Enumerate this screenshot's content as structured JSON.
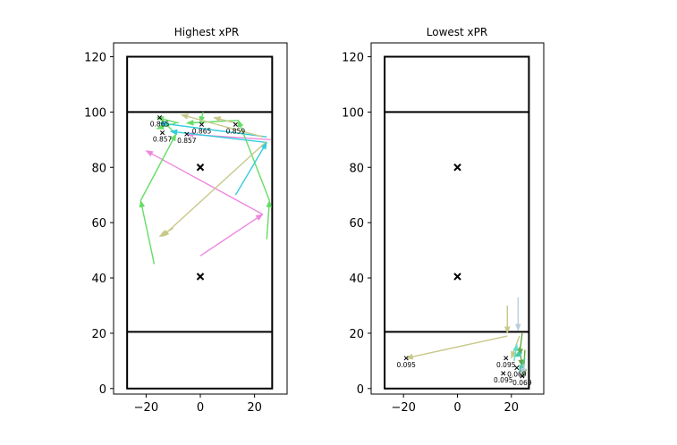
{
  "chart_data": [
    {
      "type": "scatter",
      "title": "Highest xPR",
      "xlim": [
        -32,
        32
      ],
      "ylim": [
        -2,
        125
      ],
      "xticks": [
        -20,
        0,
        20
      ],
      "yticks": [
        0,
        20,
        40,
        60,
        80,
        100,
        120
      ],
      "court": {
        "x_range": [
          -27,
          26.5
        ],
        "y_range": [
          0,
          120
        ],
        "lines_y": [
          20.5,
          100
        ],
        "spots": [
          [
            0,
            80
          ],
          [
            0,
            40.5
          ]
        ]
      },
      "shots": [
        {
          "x": -15,
          "y": 98,
          "label": "0.865"
        },
        {
          "x": 0.5,
          "y": 95.5,
          "label": "0.865"
        },
        {
          "x": 13,
          "y": 95.5,
          "label": "0.859"
        },
        {
          "x": -14,
          "y": 92.5,
          "label": "0.857"
        },
        {
          "x": -5,
          "y": 92,
          "label": "0.857"
        }
      ],
      "passes": [
        {
          "from": [
            0,
            48
          ],
          "to": [
            23,
            63
          ],
          "color": "#ee88dd"
        },
        {
          "from": [
            23,
            63
          ],
          "to": [
            -20,
            86
          ],
          "color": "#ee88dd"
        },
        {
          "from": [
            26,
            90
          ],
          "to": [
            -5,
            92
          ],
          "color": "#ee88dd"
        },
        {
          "from": [
            -17,
            45
          ],
          "to": [
            -22,
            68
          ],
          "color": "#66dd66"
        },
        {
          "from": [
            -22,
            68
          ],
          "to": [
            -9,
            92
          ],
          "color": "#66dd66"
        },
        {
          "from": [
            -9,
            92
          ],
          "to": [
            -14,
            97
          ],
          "color": "#66dd66"
        },
        {
          "from": [
            24.5,
            54
          ],
          "to": [
            25.5,
            68
          ],
          "color": "#66dd66"
        },
        {
          "from": [
            25.5,
            68
          ],
          "to": [
            14,
            97
          ],
          "color": "#66dd66"
        },
        {
          "from": [
            14,
            97
          ],
          "to": [
            -5,
            96
          ],
          "color": "#66dd66"
        },
        {
          "from": [
            1,
            100
          ],
          "to": [
            0,
            96
          ],
          "color": "#66dd66"
        },
        {
          "from": [
            -8,
            96
          ],
          "to": [
            -16,
            98
          ],
          "color": "#66dd66"
        },
        {
          "from": [
            -9,
            96
          ],
          "to": [
            -16,
            94
          ],
          "color": "#66dd66"
        },
        {
          "from": [
            13,
            70
          ],
          "to": [
            24.5,
            89
          ],
          "color": "#33ccdd"
        },
        {
          "from": [
            24.5,
            89
          ],
          "to": [
            -11,
            93
          ],
          "color": "#33ccdd"
        },
        {
          "from": [
            24.5,
            91
          ],
          "to": [
            -15,
            96
          ],
          "color": "#33ccdd"
        },
        {
          "from": [
            24,
            89
          ],
          "to": [
            -14,
            55
          ],
          "color": "#c8c88a"
        },
        {
          "from": [
            -10,
            58
          ],
          "to": [
            -15,
            55
          ],
          "color": "#c8c88a"
        },
        {
          "from": [
            23,
            91
          ],
          "to": [
            -7,
            99
          ],
          "color": "#c8c88a"
        },
        {
          "from": [
            13,
            96
          ],
          "to": [
            5,
            98
          ],
          "color": "#c8c88a"
        }
      ]
    },
    {
      "type": "scatter",
      "title": "Lowest xPR",
      "xlim": [
        -32,
        32
      ],
      "ylim": [
        -2,
        125
      ],
      "xticks": [
        -20,
        0,
        20
      ],
      "yticks": [
        0,
        20,
        40,
        60,
        80,
        100,
        120
      ],
      "court": {
        "x_range": [
          -27,
          26.5
        ],
        "y_range": [
          0,
          120
        ],
        "lines_y": [
          20.5,
          100
        ],
        "spots": [
          [
            0,
            80
          ],
          [
            0,
            40.5
          ]
        ]
      },
      "shots": [
        {
          "x": -19,
          "y": 11,
          "label": "0.095"
        },
        {
          "x": 18,
          "y": 11,
          "label": "0.095"
        },
        {
          "x": 17,
          "y": 5.5,
          "label": "0.095"
        },
        {
          "x": 22,
          "y": 7.5,
          "label": "0.069"
        },
        {
          "x": 24,
          "y": 4.5,
          "label": "0.069"
        }
      ],
      "passes": [
        {
          "from": [
            18.5,
            30
          ],
          "to": [
            18.5,
            20
          ],
          "color": "#c8c88a"
        },
        {
          "from": [
            18.5,
            19
          ],
          "to": [
            -19,
            11
          ],
          "color": "#c8c88a"
        },
        {
          "from": [
            22.5,
            33
          ],
          "to": [
            22.5,
            21
          ],
          "color": "#bbccdd"
        },
        {
          "from": [
            23,
            19
          ],
          "to": [
            20,
            11
          ],
          "color": "#c8c88a"
        },
        {
          "from": [
            24,
            20
          ],
          "to": [
            23,
            12
          ],
          "color": "#66aa44"
        },
        {
          "from": [
            23,
            15
          ],
          "to": [
            24,
            8
          ],
          "color": "#66aa44"
        },
        {
          "from": [
            25,
            14
          ],
          "to": [
            24.5,
            4.5
          ],
          "color": "#66aa44"
        },
        {
          "from": [
            24,
            13
          ],
          "to": [
            21,
            11.5
          ],
          "color": "#44ccaa"
        },
        {
          "from": [
            25,
            11
          ],
          "to": [
            23,
            6
          ],
          "color": "#44ccaa"
        },
        {
          "from": [
            21,
            10
          ],
          "to": [
            22,
            16
          ],
          "color": "#66ddcc"
        },
        {
          "from": [
            25,
            9
          ],
          "to": [
            24,
            5
          ],
          "color": "#bbccdd"
        }
      ]
    }
  ]
}
